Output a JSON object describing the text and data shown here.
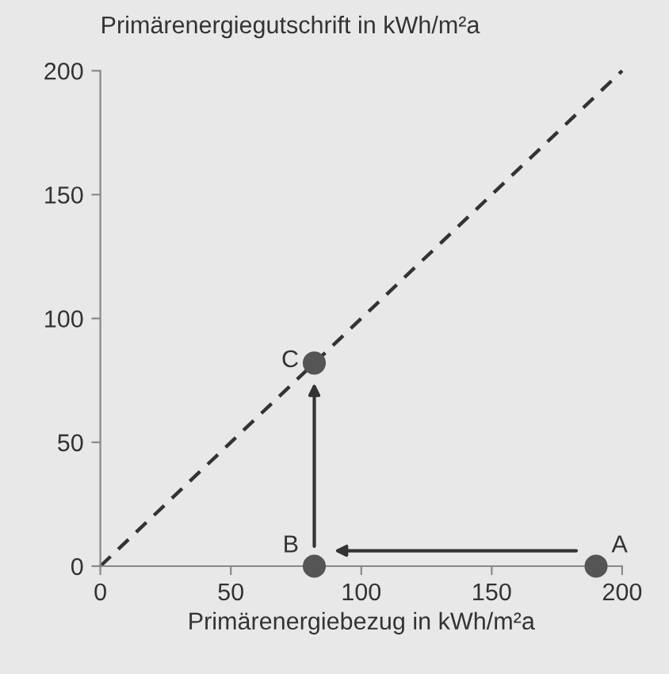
{
  "chart_data": {
    "type": "scatter",
    "xlabel": "Primärenergiebezug in kWh/m²a",
    "ylabel": "Primärenergiegutschrift in kWh/m²a",
    "series": [
      {
        "type": "line",
        "color": "#333333",
        "line_style": "dashed",
        "marker": "none",
        "x": [
          0,
          200
        ],
        "values": [
          0,
          200
        ]
      },
      {
        "color": "#555555",
        "marker": "circle",
        "x": [
          190,
          82,
          82
        ],
        "values": [
          0,
          0,
          82
        ]
      }
    ],
    "annotations": [
      "A",
      "B",
      "C"
    ],
    "xlim": [
      0,
      200
    ],
    "ylim": [
      0,
      200
    ],
    "xticks": [
      0,
      50,
      100,
      150,
      200
    ],
    "yticks": [
      0,
      50,
      100,
      150,
      200
    ],
    "grid": false,
    "legend": false
  }
}
